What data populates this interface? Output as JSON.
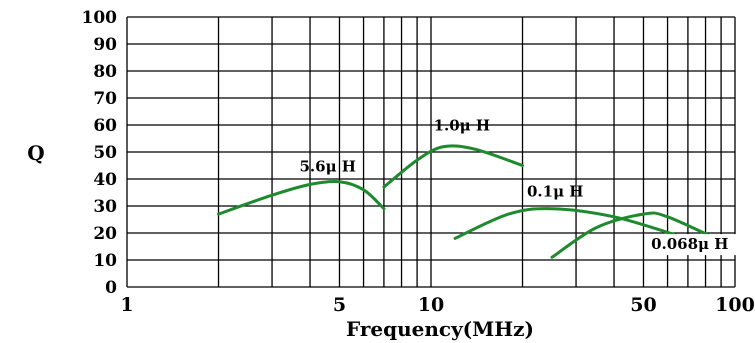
{
  "chart_data": {
    "type": "line",
    "title": "",
    "xlabel": "Frequency(MHz)",
    "ylabel": "Q",
    "xscale": "log",
    "xlim": [
      1,
      100
    ],
    "ylim": [
      0,
      100
    ],
    "grid": true,
    "x_tick_labels": [
      "1",
      "5",
      "10",
      "50",
      "100"
    ],
    "y_tick_labels": [
      "0",
      "10",
      "20",
      "30",
      "40",
      "50",
      "60",
      "70",
      "80",
      "90",
      "100"
    ],
    "line_color": "#1e8a2e",
    "series": [
      {
        "name": "5.6μ H",
        "label_text": "5.6μ H",
        "x": [
          2.0,
          3.0,
          4.0,
          5.0,
          6.0,
          7.0
        ],
        "y": [
          27,
          34,
          38,
          39,
          36,
          29
        ]
      },
      {
        "name": "1.0μ H",
        "label_text": "1.0μ H",
        "x": [
          7.0,
          9.0,
          11.0,
          14.0,
          20.0
        ],
        "y": [
          37,
          47,
          52,
          51,
          45
        ]
      },
      {
        "name": "0.1μ H",
        "label_text": "0.1μ H",
        "x": [
          12.0,
          18.0,
          25.0,
          40.0,
          65.0
        ],
        "y": [
          18,
          27,
          29,
          26,
          19
        ]
      },
      {
        "name": "0.068μ H",
        "label_text": "0.068μ H",
        "x": [
          25.0,
          35.0,
          50.0,
          60.0,
          90.0
        ],
        "y": [
          11,
          22,
          27,
          26,
          17
        ]
      }
    ]
  }
}
